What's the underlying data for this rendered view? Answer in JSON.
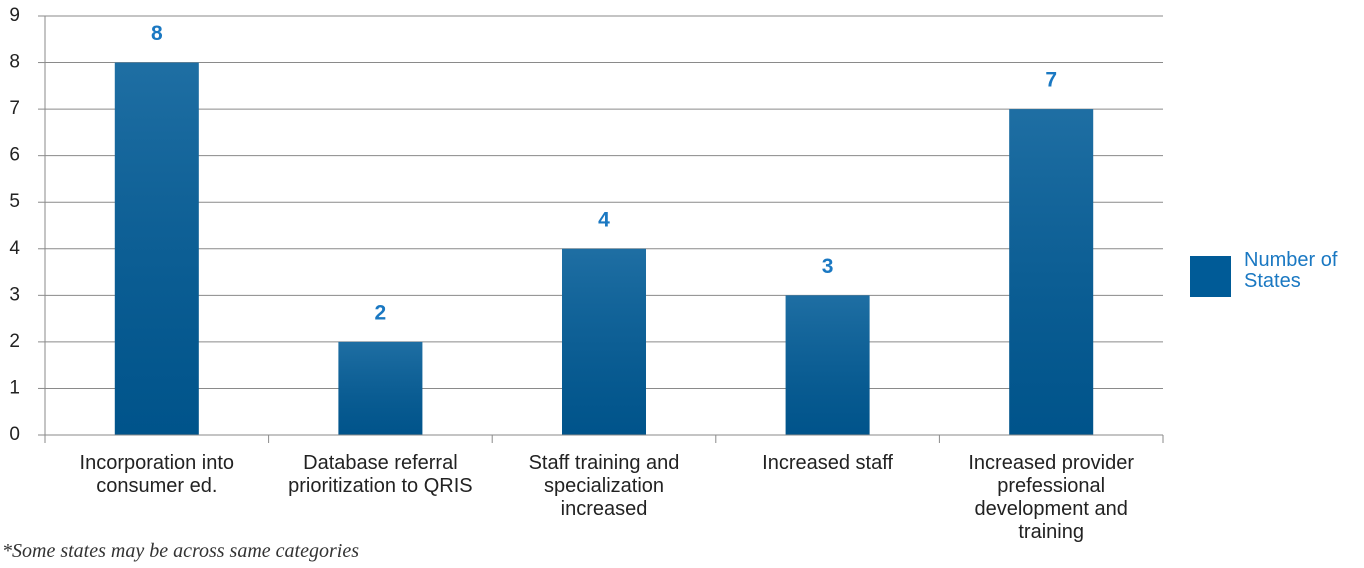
{
  "chart_data": {
    "type": "bar",
    "categories": [
      "Incorporation into consumer ed.",
      "Database referral prioritization to QRIS",
      "Staff training and specialization increased",
      "Increased staff",
      "Increased provider prefessional development and training"
    ],
    "series": [
      {
        "name": "Number of States",
        "color": "#005b97",
        "values": [
          8,
          2,
          4,
          3,
          7
        ]
      }
    ],
    "ylim": [
      0,
      9
    ],
    "yticks": [
      0,
      1,
      2,
      3,
      4,
      5,
      6,
      7,
      8,
      9
    ],
    "grid": true,
    "legend": "right",
    "footnote": "*Some states may be across same categories"
  }
}
